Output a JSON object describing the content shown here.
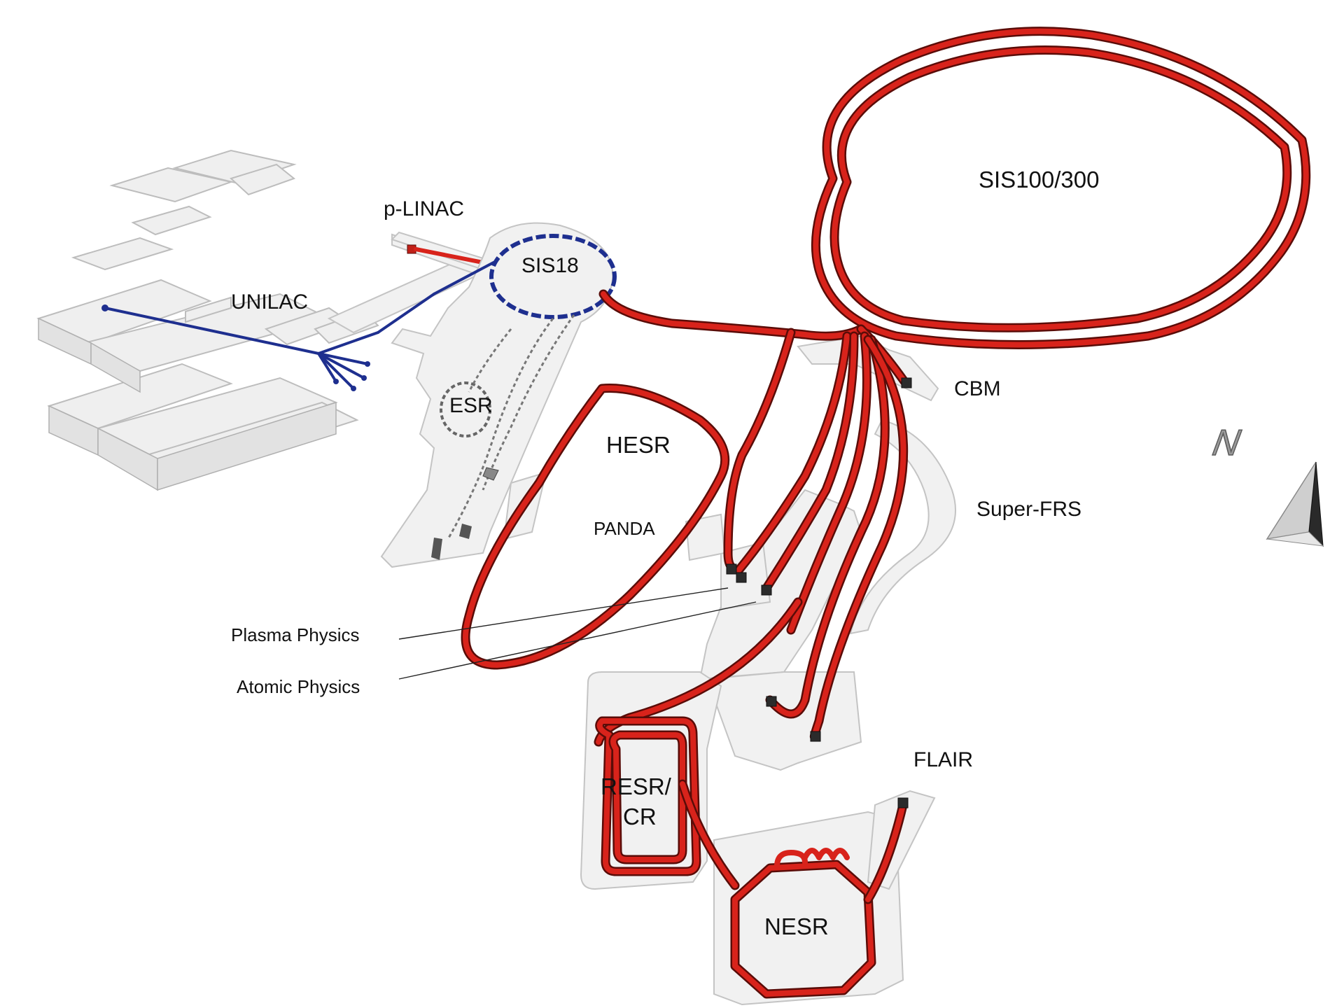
{
  "labels": {
    "unilac": "UNILAC",
    "plinac": "p-LINAC",
    "sis18": "SIS18",
    "esr": "ESR",
    "hesr": "HESR",
    "panda": "PANDA",
    "sis100": "SIS100/300",
    "cbm": "CBM",
    "superfrs": "Super-FRS",
    "plasma": "Plasma Physics",
    "atomic": "Atomic Physics",
    "flair": "FLAIR",
    "resr_line1": "RESR/",
    "resr_line2": "CR",
    "nesr": "NESR",
    "north": "N"
  },
  "colors": {
    "beamline": "#d8231b",
    "beamline_shadow": "#5a0c08",
    "existing_beamline": "#1e2f8f",
    "building": "#efefef",
    "tunnel": "#f1f1f1"
  },
  "icons": {
    "north_arrow": "north-arrow-icon"
  }
}
